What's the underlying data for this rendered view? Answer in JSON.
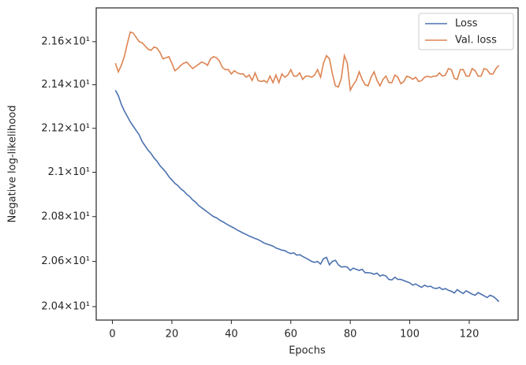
{
  "chart_data": {
    "type": "line",
    "x_label": "Epochs",
    "y_label": "Negative log-likelihood",
    "log_y": true,
    "grid": false,
    "legend": "upper right",
    "x": [
      1,
      2,
      3,
      4,
      5,
      6,
      7,
      8,
      9,
      10,
      11,
      12,
      13,
      14,
      15,
      16,
      17,
      18,
      19,
      20,
      21,
      22,
      23,
      24,
      25,
      26,
      27,
      28,
      29,
      30,
      31,
      32,
      33,
      34,
      35,
      36,
      37,
      38,
      39,
      40,
      41,
      42,
      43,
      44,
      45,
      46,
      47,
      48,
      49,
      50,
      51,
      52,
      53,
      54,
      55,
      56,
      57,
      58,
      59,
      60,
      61,
      62,
      63,
      64,
      65,
      66,
      67,
      68,
      69,
      70,
      71,
      72,
      73,
      74,
      75,
      76,
      77,
      78,
      79,
      80,
      81,
      82,
      83,
      84,
      85,
      86,
      87,
      88,
      89,
      90,
      91,
      92,
      93,
      94,
      95,
      96,
      97,
      98,
      99,
      100,
      101,
      102,
      103,
      104,
      105,
      106,
      107,
      108,
      109,
      110,
      111,
      112,
      113,
      114,
      115,
      116,
      117,
      118,
      119,
      120,
      121,
      122,
      123,
      124,
      125,
      126,
      127,
      128,
      129,
      130
    ],
    "series": [
      {
        "name": "Loss",
        "color": "#4c72b0",
        "values": [
          21.375,
          21.35,
          21.31,
          21.28,
          21.255,
          21.23,
          21.21,
          21.19,
          21.17,
          21.14,
          21.12,
          21.1,
          21.085,
          21.065,
          21.05,
          21.03,
          21.015,
          21.0,
          20.98,
          20.965,
          20.95,
          20.94,
          20.925,
          20.915,
          20.9,
          20.89,
          20.875,
          20.865,
          20.85,
          20.84,
          20.83,
          20.82,
          20.81,
          20.8,
          20.795,
          20.785,
          20.778,
          20.77,
          20.762,
          20.755,
          20.748,
          20.74,
          20.733,
          20.726,
          20.72,
          20.713,
          20.708,
          20.702,
          20.697,
          20.69,
          20.682,
          20.677,
          20.673,
          20.668,
          20.66,
          20.655,
          20.65,
          20.648,
          20.64,
          20.635,
          20.638,
          20.628,
          20.63,
          20.622,
          20.615,
          20.608,
          20.6,
          20.596,
          20.6,
          20.588,
          20.612,
          20.618,
          20.585,
          20.6,
          20.605,
          20.585,
          20.575,
          20.577,
          20.575,
          20.56,
          20.57,
          20.565,
          20.56,
          20.565,
          20.55,
          20.55,
          20.548,
          20.543,
          20.548,
          20.535,
          20.54,
          20.535,
          20.52,
          20.518,
          20.53,
          20.52,
          20.52,
          20.515,
          20.51,
          20.505,
          20.495,
          20.5,
          20.492,
          20.485,
          20.495,
          20.488,
          20.49,
          20.482,
          20.48,
          20.485,
          20.475,
          20.48,
          20.472,
          20.468,
          20.46,
          20.475,
          20.465,
          20.458,
          20.47,
          20.462,
          20.455,
          20.45,
          20.462,
          20.455,
          20.448,
          20.44,
          20.45,
          20.445,
          20.435,
          20.422
        ]
      },
      {
        "name": "Val. loss",
        "color": "#dd8452",
        "values": [
          21.5,
          21.46,
          21.49,
          21.53,
          21.59,
          21.645,
          21.64,
          21.62,
          21.6,
          21.595,
          21.58,
          21.565,
          21.56,
          21.575,
          21.57,
          21.55,
          21.52,
          21.525,
          21.53,
          21.5,
          21.465,
          21.475,
          21.49,
          21.5,
          21.505,
          21.49,
          21.475,
          21.485,
          21.495,
          21.505,
          21.5,
          21.49,
          21.52,
          21.53,
          21.525,
          21.51,
          21.48,
          21.47,
          21.47,
          21.45,
          21.465,
          21.455,
          21.45,
          21.45,
          21.435,
          21.445,
          21.42,
          21.455,
          21.42,
          21.415,
          21.42,
          21.41,
          21.44,
          21.41,
          21.445,
          21.41,
          21.45,
          21.435,
          21.445,
          21.47,
          21.44,
          21.44,
          21.455,
          21.425,
          21.44,
          21.44,
          21.435,
          21.445,
          21.47,
          21.435,
          21.5,
          21.535,
          21.52,
          21.45,
          21.395,
          21.39,
          21.43,
          21.535,
          21.5,
          21.375,
          21.4,
          21.42,
          21.46,
          21.425,
          21.4,
          21.395,
          21.435,
          21.46,
          21.42,
          21.395,
          21.425,
          21.44,
          21.41,
          21.41,
          21.445,
          21.435,
          21.405,
          21.415,
          21.44,
          21.435,
          21.425,
          21.435,
          21.415,
          21.42,
          21.435,
          21.44,
          21.435,
          21.44,
          21.44,
          21.455,
          21.44,
          21.445,
          21.475,
          21.47,
          21.43,
          21.425,
          21.47,
          21.47,
          21.44,
          21.44,
          21.475,
          21.465,
          21.44,
          21.44,
          21.475,
          21.47,
          21.45,
          21.45,
          21.475,
          21.49
        ]
      }
    ],
    "xlim": [
      -5.45,
      136.45
    ],
    "xticks": [
      0,
      20,
      40,
      60,
      80,
      100,
      120
    ],
    "ylim": [
      20.341,
      21.758
    ],
    "yticks": [
      {
        "value": 20.4,
        "label": "2.04×10¹"
      },
      {
        "value": 20.6,
        "label": "2.06×10¹"
      },
      {
        "value": 20.8,
        "label": "2.08×10¹"
      },
      {
        "value": 21,
        "label": "2.1×10¹"
      },
      {
        "value": 21.2,
        "label": "2.12×10¹"
      },
      {
        "value": 21.4,
        "label": "2.14×10¹"
      },
      {
        "value": 21.6,
        "label": "2.16×10¹"
      }
    ]
  }
}
